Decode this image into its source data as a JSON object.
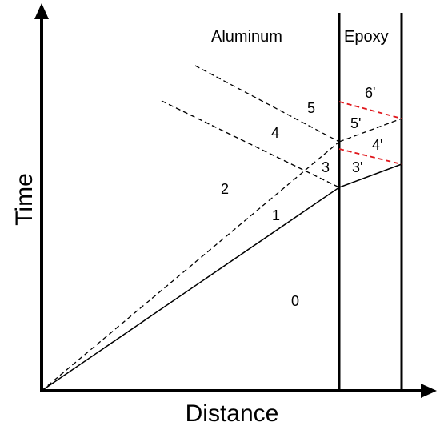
{
  "axes": {
    "x_label": "Distance",
    "y_label": "Time"
  },
  "materials": {
    "left": "Aluminum",
    "right": "Epoxy"
  },
  "regions": [
    "0",
    "1",
    "2",
    "3",
    "4",
    "5",
    "3'",
    "4'",
    "5'",
    "6'"
  ],
  "colors": {
    "line": "#000000",
    "reflected": "#e0161b"
  }
}
